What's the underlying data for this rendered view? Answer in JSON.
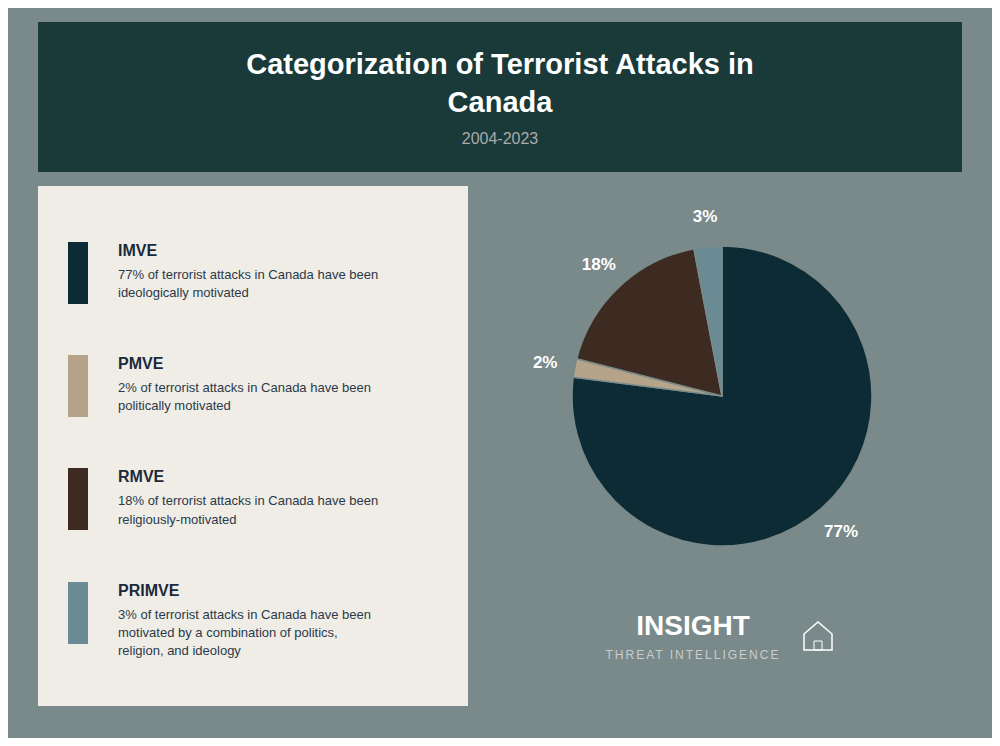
{
  "chart_data": {
    "type": "pie",
    "title": "Categorization of Terrorist Attacks in\nCanada",
    "subtitle": "2004-2023",
    "categories": [
      "IMVE",
      "PMVE",
      "RMVE",
      "PRIMVE"
    ],
    "values": [
      77,
      2,
      18,
      3
    ],
    "value_labels": [
      "77%",
      "2%",
      "18%",
      "3%"
    ],
    "colors": [
      "#0d2b35",
      "#b5a48a",
      "#3d2b22",
      "#6a8a94"
    ],
    "data_labels": true,
    "legend": "left",
    "annotations": [
      "77% of terrorist attacks in Canada have been\nideologically motivated",
      "2% of terrorist attacks in Canada have been\npolitically motivated",
      "18% of terrorist attacks in Canada have been\nreligiously-motivated",
      "3% of terrorist attacks in Canada have been\nmotivated by a combination of politics,\nreligion, and ideology",
      "INSIGHT",
      "THREAT INTELLIGENCE"
    ]
  }
}
